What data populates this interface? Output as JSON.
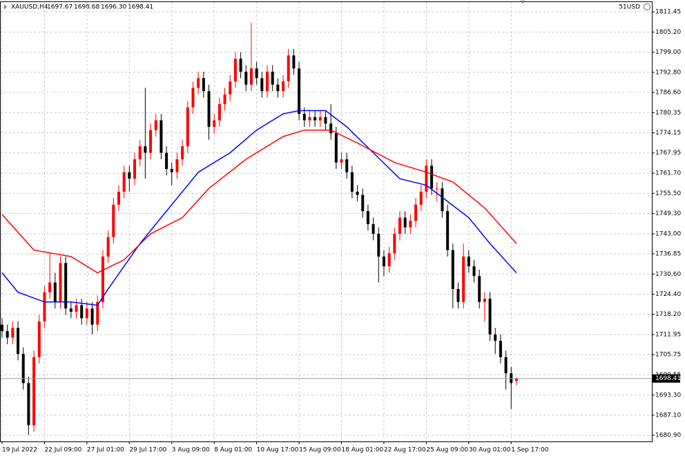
{
  "chart_data": {
    "type": "candlestick",
    "title": "XAUUSD,H4",
    "info": [
      "1697.67",
      "1698.68",
      "1696.30",
      "1698.41"
    ],
    "account": "51USD",
    "up_color": "#ff0000",
    "down_color": "#000000",
    "grid": true,
    "ylim": [
      1679.0,
      1815.1
    ],
    "yticks": [
      1811.45,
      {
        "value": 1805.2,
        "label": "1805.20"
      },
      {
        "value": 1799.0,
        "label": "1799.00"
      },
      {
        "value": 1792.8,
        "label": "1792.80"
      },
      {
        "value": 1786.6,
        "label": "1786.60"
      },
      1780.35,
      1774.15,
      1767.95,
      {
        "value": 1761.7,
        "label": "1761.70"
      },
      {
        "value": 1755.5,
        "label": "1755.50"
      },
      {
        "value": 1749.3,
        "label": "1749.30"
      },
      {
        "value": 1743.0,
        "label": "1743.00"
      },
      1736.85,
      {
        "value": 1730.6,
        "label": "1730.60"
      },
      {
        "value": 1724.4,
        "label": "1724.40"
      },
      {
        "value": 1718.2,
        "label": "1718.20"
      },
      1711.95,
      1705.75,
      1699.55,
      {
        "value": 1693.3,
        "label": "1693.30"
      },
      {
        "value": 1687.1,
        "label": "1687.10"
      },
      {
        "value": 1680.9,
        "label": "1680.90"
      }
    ],
    "current_price": {
      "value": 1698.41,
      "label": "1698.41"
    },
    "categories": [
      "19 Jul 2022",
      null,
      null,
      null,
      null,
      null,
      null,
      null,
      "22 Jul 09:00",
      null,
      null,
      null,
      null,
      null,
      null,
      null,
      "27 Jul 01:00",
      null,
      null,
      null,
      null,
      null,
      null,
      null,
      "29 Jul 17:00",
      null,
      null,
      null,
      null,
      null,
      null,
      null,
      "3 Aug 09:00",
      null,
      null,
      null,
      null,
      null,
      null,
      null,
      "8 Aug 01:00",
      null,
      null,
      null,
      null,
      null,
      null,
      null,
      "10 Aug 17:00",
      null,
      null,
      null,
      null,
      null,
      null,
      null,
      "15 Aug 09:00",
      null,
      null,
      null,
      null,
      null,
      null,
      null,
      "18 Aug 01:00",
      null,
      null,
      null,
      null,
      null,
      null,
      null,
      "22 Aug 17:00",
      null,
      null,
      null,
      null,
      null,
      null,
      null,
      "25 Aug 09:00",
      null,
      null,
      null,
      null,
      null,
      null,
      null,
      "30 Aug 01:00",
      null,
      null,
      null,
      null,
      null,
      null,
      null,
      "1 Sep 17:00",
      null
    ],
    "open": [
      1715,
      1713,
      1711,
      1714,
      1706,
      1697,
      1684,
      1705,
      1716,
      1725,
      1728,
      1722,
      1734,
      1720,
      1719,
      1721,
      1717,
      1720,
      1715,
      1722,
      1736,
      1742,
      1752,
      1756,
      1762,
      1760,
      1766,
      1770,
      1768,
      1775,
      1778,
      1768,
      1763,
      1762,
      1766,
      1770,
      1782,
      1788,
      1791,
      1787,
      1776,
      1778,
      1783,
      1786,
      1790,
      1797,
      1793,
      1789,
      1794,
      1791,
      1787,
      1793,
      1789,
      1787,
      1790,
      1798,
      1794,
      1780,
      1778,
      1779,
      1778,
      1779,
      1777,
      1774,
      1765,
      1766,
      1762,
      1756,
      1755,
      1750,
      1746,
      1743,
      1736,
      1733,
      1737,
      1743,
      1748,
      1745,
      1747,
      1752,
      1756,
      1764,
      1757,
      1757,
      1750,
      1738,
      1726,
      1722,
      1736,
      1733,
      1730,
      1722,
      1723,
      1712,
      1710,
      1705,
      1700,
      1697.67
    ],
    "high": [
      1717,
      1715,
      1716,
      1716,
      1708,
      1699,
      1707,
      1718,
      1727,
      1737,
      1731,
      1736,
      1736,
      1722,
      1723,
      1723,
      1722,
      1722,
      1724,
      1738,
      1744,
      1754,
      1758,
      1764,
      1764,
      1768,
      1772,
      1788,
      1777,
      1780,
      1780,
      1770,
      1765,
      1768,
      1772,
      1784,
      1790,
      1793,
      1793,
      1789,
      1780,
      1785,
      1788,
      1792,
      1799,
      1799,
      1795,
      1808,
      1796,
      1793,
      1795,
      1795,
      1791,
      1792,
      1800,
      1800,
      1796,
      1782,
      1781,
      1781,
      1781,
      1781,
      1783,
      1776,
      1768,
      1768,
      1764,
      1758,
      1757,
      1752,
      1748,
      1745,
      1738,
      1739,
      1745,
      1750,
      1750,
      1749,
      1754,
      1758,
      1766,
      1766,
      1759,
      1759,
      1752,
      1740,
      1728,
      1740,
      1738,
      1735,
      1732,
      1725,
      1725,
      1714,
      1712,
      1707,
      1702,
      1698.68
    ],
    "low": [
      1711,
      1709,
      1709,
      1704,
      1695,
      1681,
      1682,
      1703,
      1714,
      1723,
      1720,
      1720,
      1718,
      1717,
      1717,
      1715,
      1715,
      1712,
      1713,
      1720,
      1734,
      1740,
      1750,
      1754,
      1756,
      1758,
      1764,
      1760,
      1766,
      1773,
      1766,
      1761,
      1758,
      1760,
      1764,
      1768,
      1780,
      1786,
      1785,
      1772,
      1774,
      1776,
      1781,
      1784,
      1788,
      1791,
      1787,
      1787,
      1789,
      1785,
      1785,
      1787,
      1785,
      1785,
      1788,
      1792,
      1778,
      1776,
      1776,
      1776,
      1776,
      1775,
      1772,
      1763,
      1763,
      1760,
      1754,
      1753,
      1748,
      1744,
      1741,
      1728,
      1730,
      1731,
      1735,
      1741,
      1743,
      1743,
      1745,
      1750,
      1754,
      1755,
      1753,
      1748,
      1736,
      1720,
      1720,
      1720,
      1731,
      1728,
      1720,
      1716,
      1710,
      1706,
      1703,
      1695,
      1689,
      1696.3
    ],
    "close": [
      1713,
      1711,
      1714,
      1706,
      1697,
      1684,
      1705,
      1716,
      1725,
      1728,
      1722,
      1734,
      1720,
      1719,
      1721,
      1717,
      1720,
      1715,
      1722,
      1736,
      1742,
      1752,
      1756,
      1762,
      1760,
      1766,
      1770,
      1768,
      1775,
      1778,
      1768,
      1763,
      1762,
      1766,
      1770,
      1782,
      1788,
      1791,
      1787,
      1776,
      1778,
      1783,
      1786,
      1790,
      1797,
      1793,
      1789,
      1794,
      1791,
      1787,
      1793,
      1789,
      1787,
      1790,
      1798,
      1794,
      1780,
      1778,
      1779,
      1778,
      1779,
      1777,
      1774,
      1765,
      1766,
      1762,
      1756,
      1755,
      1750,
      1746,
      1743,
      1736,
      1733,
      1737,
      1743,
      1748,
      1745,
      1747,
      1752,
      1756,
      1764,
      1757,
      1757,
      1750,
      1738,
      1726,
      1722,
      1736,
      1733,
      1730,
      1722,
      1723,
      1712,
      1710,
      1705,
      1700,
      1697,
      1698.41
    ],
    "overlays": [
      {
        "color": "#0000ff",
        "x": [
          0,
          3,
          8,
          13,
          18,
          20,
          26,
          31,
          37,
          43,
          48,
          53,
          56,
          61,
          65,
          70,
          75,
          80,
          84,
          88,
          92,
          97
        ],
        "values": [
          1731,
          1725,
          1722,
          1722,
          1721,
          1726,
          1740,
          1750,
          1762,
          1768,
          1775,
          1780,
          1781,
          1781,
          1776,
          1768,
          1760,
          1758,
          1753,
          1748,
          1740,
          1731
        ]
      },
      {
        "color": "#ff0000",
        "x": [
          0,
          6,
          13,
          18,
          23,
          28,
          34,
          39,
          46,
          53,
          57,
          62,
          67,
          74,
          80,
          85,
          91,
          97
        ],
        "values": [
          1749,
          1738,
          1736,
          1731,
          1735,
          1743,
          1748,
          1757,
          1766,
          1773,
          1775,
          1775,
          1771,
          1765,
          1762,
          1759,
          1751,
          1740
        ]
      }
    ]
  }
}
